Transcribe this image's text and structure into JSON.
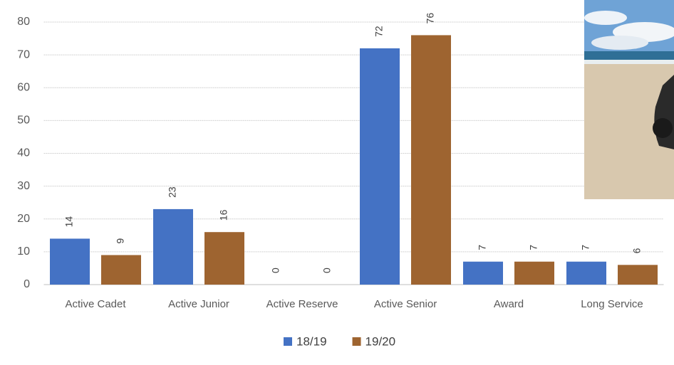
{
  "chart_data": {
    "type": "bar",
    "categories": [
      "Active Cadet",
      "Active Junior",
      "Active Reserve",
      "Active Senior",
      "Award",
      "Long Service"
    ],
    "series": [
      {
        "name": "18/19",
        "color": "#4472c4",
        "values": [
          14,
          23,
          0,
          72,
          7,
          7
        ]
      },
      {
        "name": "19/20",
        "color": "#9e6430",
        "values": [
          9,
          16,
          0,
          76,
          7,
          6
        ]
      }
    ],
    "ylim": [
      0,
      80
    ],
    "yticks": [
      0,
      10,
      20,
      30,
      40,
      50,
      60,
      70,
      80
    ],
    "grid": true
  }
}
